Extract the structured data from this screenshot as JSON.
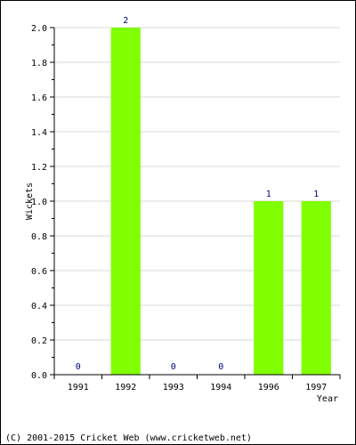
{
  "chart_data": {
    "type": "bar",
    "categories": [
      "1991",
      "1992",
      "1993",
      "1994",
      "1996",
      "1997"
    ],
    "values": [
      0,
      2,
      0,
      0,
      1,
      1
    ],
    "data_labels": [
      "0",
      "2",
      "0",
      "0",
      "1",
      "1"
    ],
    "title": "",
    "xlabel": "Year",
    "ylabel": "Wickets",
    "ylim": [
      0,
      2
    ],
    "yticks": [
      "0.0",
      "0.2",
      "0.4",
      "0.6",
      "0.8",
      "1.0",
      "1.2",
      "1.4",
      "1.6",
      "1.8",
      "2.0"
    ],
    "grid": true,
    "legend": "none"
  },
  "footer": "(C) 2001-2015 Cricket Web (www.cricketweb.net)",
  "colors": {
    "bar": "#80ff00",
    "data_label": "#000080",
    "grid": "#d8d8d8",
    "axis": "#000000",
    "background": "#ffffff"
  }
}
